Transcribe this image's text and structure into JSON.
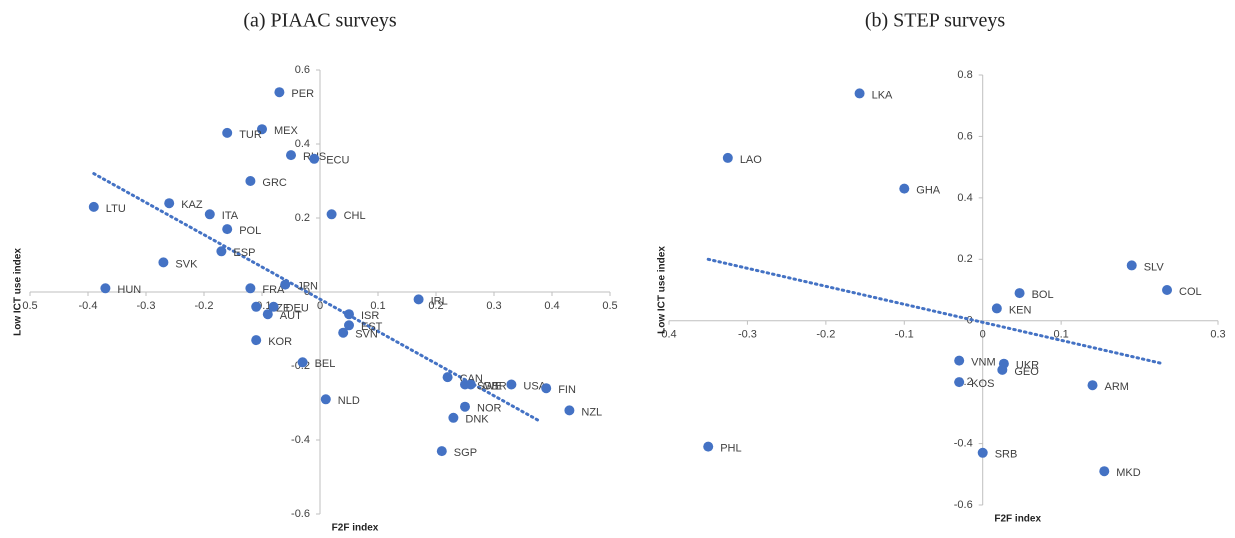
{
  "chart_data": [
    {
      "type": "scatter",
      "title": "(a)   PIAAC surveys",
      "x_label": "F2F index",
      "y_label": "Low ICT use index",
      "color": "#4472c4",
      "labels": [
        "PER",
        "MEX",
        "TUR",
        "RUS",
        "ECU",
        "GRC",
        "CHL",
        "KAZ",
        "LTU",
        "ITA",
        "POL",
        "ESP",
        "SVK",
        "HUN",
        "FRA",
        "JPN",
        "IRL",
        "ISR",
        "CZE",
        "DEU",
        "AUT",
        "EST",
        "SVN",
        "KOR",
        "BEL",
        "NLD",
        "CAN",
        "SWE",
        "GBR",
        "USA",
        "FIN",
        "NOR",
        "NZL",
        "DNK",
        "SGP"
      ],
      "x": [
        -0.07,
        -0.1,
        -0.16,
        -0.05,
        -0.01,
        -0.12,
        0.02,
        -0.26,
        -0.39,
        -0.19,
        -0.16,
        -0.17,
        -0.27,
        -0.37,
        -0.12,
        -0.06,
        0.17,
        0.05,
        -0.11,
        -0.08,
        -0.09,
        0.05,
        0.04,
        -0.11,
        -0.03,
        0.01,
        0.22,
        0.25,
        0.26,
        0.33,
        0.39,
        0.25,
        0.43,
        0.23,
        0.21
      ],
      "y": [
        0.54,
        0.44,
        0.43,
        0.37,
        0.36,
        0.3,
        0.21,
        0.24,
        0.23,
        0.21,
        0.17,
        0.11,
        0.08,
        0.01,
        0.01,
        0.02,
        -0.02,
        -0.06,
        -0.04,
        -0.04,
        -0.06,
        -0.09,
        -0.11,
        -0.13,
        -0.19,
        -0.29,
        -0.23,
        -0.25,
        -0.25,
        -0.25,
        -0.26,
        -0.31,
        -0.32,
        -0.34,
        -0.43
      ],
      "trendline": {
        "x": [
          -0.39,
          0.38
        ],
        "y": [
          0.32,
          -0.35
        ]
      },
      "xlim": [
        -0.5,
        0.5
      ],
      "ylim": [
        -0.6,
        0.6
      ],
      "xticks": [
        {
          "value": -0.5,
          "label": "0.5"
        },
        -0.4,
        -0.3,
        -0.2,
        -0.1,
        0,
        0.1,
        0.2,
        0.3,
        0.4,
        0.5
      ],
      "yticks": [
        0.6,
        0.4,
        0.2,
        0,
        -0.2,
        -0.4,
        -0.6
      ]
    },
    {
      "type": "scatter",
      "title": "(b)   STEP surveys",
      "x_label": "F2F index",
      "y_label": "Low ICT use index",
      "color": "#4472c4",
      "labels": [
        "LKA",
        "LAO",
        "GHA",
        "SLV",
        "COL",
        "BOL",
        "KEN",
        "VNM",
        "UKR",
        "GEO",
        "KOS",
        "ARM",
        "PHL",
        "SRB",
        "MKD"
      ],
      "x": [
        -0.157,
        -0.325,
        -0.1,
        0.19,
        0.235,
        0.047,
        0.018,
        -0.03,
        0.027,
        0.025,
        -0.03,
        0.14,
        -0.35,
        0,
        0.155
      ],
      "y": [
        0.74,
        0.53,
        0.43,
        0.18,
        0.1,
        0.09,
        0.04,
        -0.13,
        -0.14,
        -0.16,
        -0.2,
        -0.21,
        -0.41,
        -0.43,
        -0.49
      ],
      "trendline": {
        "x": [
          -0.35,
          0.23
        ],
        "y": [
          0.2,
          -0.14
        ]
      },
      "xlim": [
        -0.4,
        0.3
      ],
      "ylim": [
        -0.6,
        0.8
      ],
      "xticks": [
        {
          "value": -0.4,
          "label": "0.4"
        },
        -0.3,
        -0.2,
        -0.1,
        0,
        0.1,
        0.3
      ],
      "yticks": [
        0.8,
        0.6,
        0.4,
        0.2,
        0,
        -0.2,
        -0.4,
        -0.6
      ]
    }
  ]
}
